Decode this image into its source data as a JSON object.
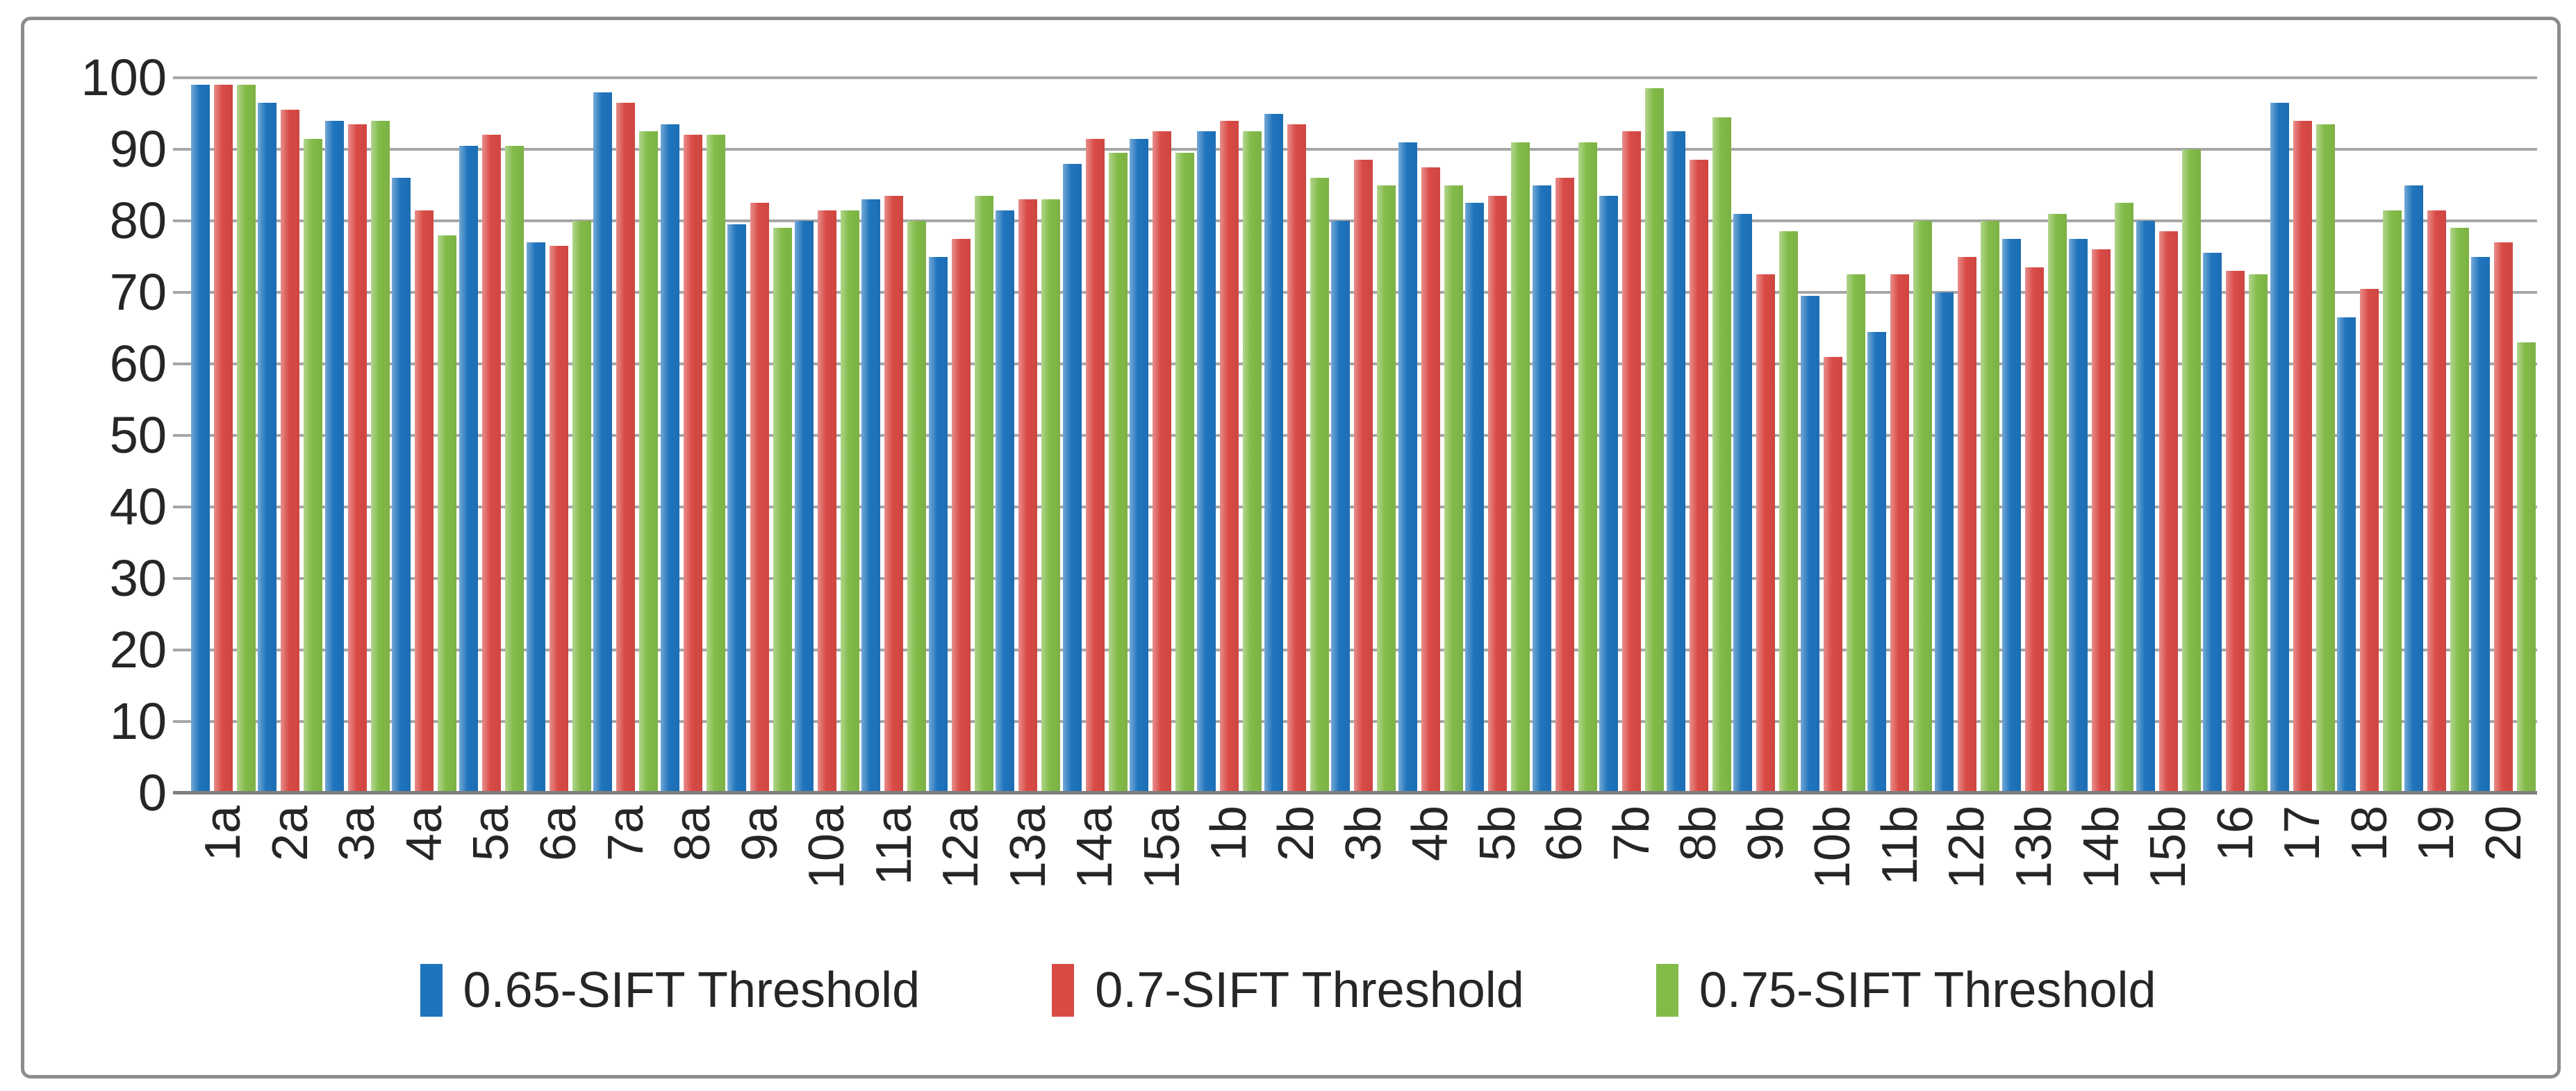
{
  "chart_data": {
    "type": "bar",
    "title": "",
    "xlabel": "",
    "ylabel": "",
    "ylim": [
      0,
      100
    ],
    "ytick_step": 10,
    "yticks": [
      0,
      10,
      20,
      30,
      40,
      50,
      60,
      70,
      80,
      90,
      100
    ],
    "grid": true,
    "legend_position": "bottom",
    "categories": [
      "1a",
      "2a",
      "3a",
      "4a",
      "5a",
      "6a",
      "7a",
      "8a",
      "9a",
      "10a",
      "11a",
      "12a",
      "13a",
      "14a",
      "15a",
      "1b",
      "2b",
      "3b",
      "4b",
      "5b",
      "6b",
      "7b",
      "8b",
      "9b",
      "10b",
      "11b",
      "12b",
      "13b",
      "14b",
      "15b",
      "16",
      "17",
      "18",
      "19",
      "20"
    ],
    "series": [
      {
        "name": "0.65-SIFT Threshold",
        "color": "#1f74bd",
        "values": [
          99,
          96.5,
          94,
          86,
          90.5,
          77,
          98,
          93.5,
          79.5,
          80,
          83,
          75,
          81.5,
          88,
          91.5,
          92.5,
          95,
          80,
          91,
          82.5,
          85,
          83.5,
          92.5,
          81,
          69.5,
          64.5,
          70,
          77.5,
          77.5,
          80,
          75.5,
          96.5,
          66.5,
          85,
          75
        ]
      },
      {
        "name": "0.7-SIFT Threshold",
        "color": "#d94a45",
        "values": [
          99,
          95.5,
          93.5,
          81.5,
          92,
          76.5,
          96.5,
          92,
          82.5,
          81.5,
          83.5,
          77.5,
          83,
          91.5,
          92.5,
          94,
          93.5,
          88.5,
          87.5,
          83.5,
          86,
          92.5,
          88.5,
          72.5,
          61,
          72.5,
          75,
          73.5,
          76,
          78.5,
          73,
          94,
          70.5,
          81.5,
          77
        ]
      },
      {
        "name": "0.75-SIFT Threshold",
        "color": "#82bb48",
        "values": [
          99,
          91.5,
          94,
          78,
          90.5,
          80,
          92.5,
          92,
          79,
          81.5,
          80,
          83.5,
          83,
          89.5,
          89.5,
          92.5,
          86,
          85,
          85,
          91,
          91,
          98.5,
          94.5,
          78.5,
          72.5,
          80,
          80,
          81,
          82.5,
          90,
          72.5,
          93.5,
          81.5,
          79,
          63
        ]
      }
    ],
    "colors": {
      "gridline": "#a6a6a6",
      "axis": "#7f7f7f",
      "frame_border": "#8c8c8c",
      "tick_text": "#262626",
      "background": "#ffffff"
    }
  }
}
